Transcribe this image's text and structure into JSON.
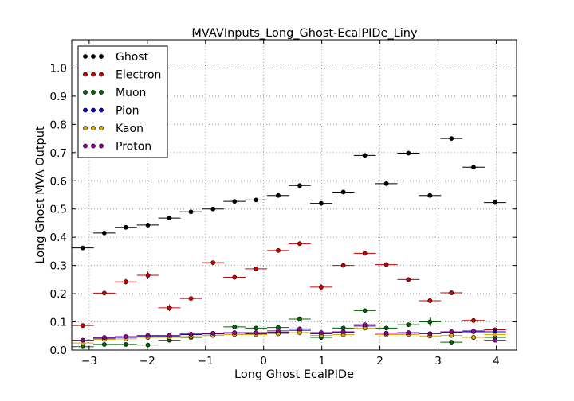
{
  "chart_data": {
    "type": "scatter",
    "title": "MVAVInputs_Long_Ghost-EcalPIDe_Liny",
    "xlabel": "Long Ghost EcalPIDe",
    "ylabel": "Long Ghost MVA Output",
    "xlim": [
      -3.3,
      4.35
    ],
    "ylim": [
      0.0,
      1.1
    ],
    "xticks": [
      -3,
      -2,
      -1,
      0,
      1,
      2,
      3,
      4
    ],
    "xtick_labels": [
      "−3",
      "−2",
      "−1",
      "0",
      "1",
      "2",
      "3",
      "4"
    ],
    "yticks": [
      0.0,
      0.1,
      0.2,
      0.3,
      0.4,
      0.5,
      0.6,
      0.7,
      0.8,
      0.9,
      1.0
    ],
    "ytick_labels": [
      "0.0",
      "0.1",
      "0.2",
      "0.3",
      "0.4",
      "0.5",
      "0.6",
      "0.7",
      "0.8",
      "0.9",
      "1.0"
    ],
    "reference_line_y": 1.0,
    "grid": true,
    "legend_position": "top-left",
    "bin_half_width": 0.19,
    "x": [
      -3.11,
      -2.74,
      -2.37,
      -1.99,
      -1.62,
      -1.25,
      -0.87,
      -0.5,
      -0.13,
      0.25,
      0.62,
      0.99,
      1.37,
      1.74,
      2.11,
      2.49,
      2.86,
      3.23,
      3.61,
      3.98
    ],
    "series": [
      {
        "name": "Ghost",
        "color": "#000000",
        "values": [
          0.362,
          0.415,
          0.435,
          0.443,
          0.468,
          0.49,
          0.5,
          0.527,
          0.532,
          0.548,
          0.583,
          0.52,
          0.56,
          0.69,
          0.59,
          0.698,
          0.548,
          0.75,
          0.648,
          0.523
        ],
        "errors": [
          0.004,
          0.004,
          0.004,
          0.004,
          0.004,
          0.004,
          0.004,
          0.004,
          0.004,
          0.004,
          0.004,
          0.005,
          0.005,
          0.005,
          0.005,
          0.005,
          0.005,
          0.005,
          0.005,
          0.005
        ]
      },
      {
        "name": "Electron",
        "color": "#cc0000",
        "values": [
          0.087,
          0.202,
          0.242,
          0.265,
          0.15,
          0.183,
          0.31,
          0.258,
          0.288,
          0.353,
          0.377,
          0.223,
          0.3,
          0.343,
          0.303,
          0.25,
          0.175,
          0.203,
          0.105,
          0.072
        ],
        "errors": [
          0.004,
          0.006,
          0.01,
          0.014,
          0.012,
          0.008,
          0.006,
          0.005,
          0.005,
          0.004,
          0.004,
          0.012,
          0.004,
          0.004,
          0.004,
          0.005,
          0.004,
          0.004,
          0.004,
          0.004
        ]
      },
      {
        "name": "Muon",
        "color": "#006600",
        "values": [
          0.012,
          0.02,
          0.02,
          0.018,
          0.035,
          0.045,
          0.057,
          0.082,
          0.078,
          0.08,
          0.11,
          0.045,
          0.078,
          0.14,
          0.078,
          0.09,
          0.1,
          0.028,
          0.045,
          0.045
        ],
        "errors": [
          0.005,
          0.005,
          0.005,
          0.006,
          0.005,
          0.005,
          0.004,
          0.004,
          0.004,
          0.004,
          0.005,
          0.006,
          0.004,
          0.004,
          0.004,
          0.006,
          0.015,
          0.004,
          0.004,
          0.004
        ]
      },
      {
        "name": "Pion",
        "color": "#0000cc",
        "values": [
          0.035,
          0.042,
          0.045,
          0.05,
          0.05,
          0.055,
          0.058,
          0.06,
          0.058,
          0.063,
          0.07,
          0.058,
          0.062,
          0.085,
          0.06,
          0.06,
          0.058,
          0.063,
          0.065,
          0.065
        ],
        "errors": [
          0.003,
          0.003,
          0.003,
          0.003,
          0.003,
          0.003,
          0.003,
          0.003,
          0.003,
          0.003,
          0.003,
          0.003,
          0.003,
          0.003,
          0.003,
          0.003,
          0.003,
          0.003,
          0.003,
          0.003
        ]
      },
      {
        "name": "Kaon",
        "color": "#ddaa00",
        "values": [
          0.025,
          0.038,
          0.04,
          0.045,
          0.045,
          0.048,
          0.052,
          0.055,
          0.055,
          0.058,
          0.062,
          0.052,
          0.055,
          0.078,
          0.055,
          0.055,
          0.05,
          0.052,
          0.045,
          0.055
        ],
        "errors": [
          0.003,
          0.003,
          0.003,
          0.003,
          0.003,
          0.003,
          0.003,
          0.003,
          0.003,
          0.003,
          0.003,
          0.003,
          0.003,
          0.003,
          0.003,
          0.003,
          0.003,
          0.003,
          0.003,
          0.003
        ]
      },
      {
        "name": "Proton",
        "color": "#990099",
        "values": [
          0.035,
          0.045,
          0.048,
          0.052,
          0.052,
          0.057,
          0.06,
          0.062,
          0.062,
          0.068,
          0.075,
          0.062,
          0.065,
          0.09,
          0.06,
          0.062,
          0.058,
          0.065,
          0.068,
          0.035
        ],
        "errors": [
          0.003,
          0.003,
          0.003,
          0.003,
          0.003,
          0.003,
          0.003,
          0.003,
          0.003,
          0.003,
          0.003,
          0.003,
          0.003,
          0.003,
          0.003,
          0.003,
          0.003,
          0.003,
          0.003,
          0.003
        ]
      }
    ]
  }
}
